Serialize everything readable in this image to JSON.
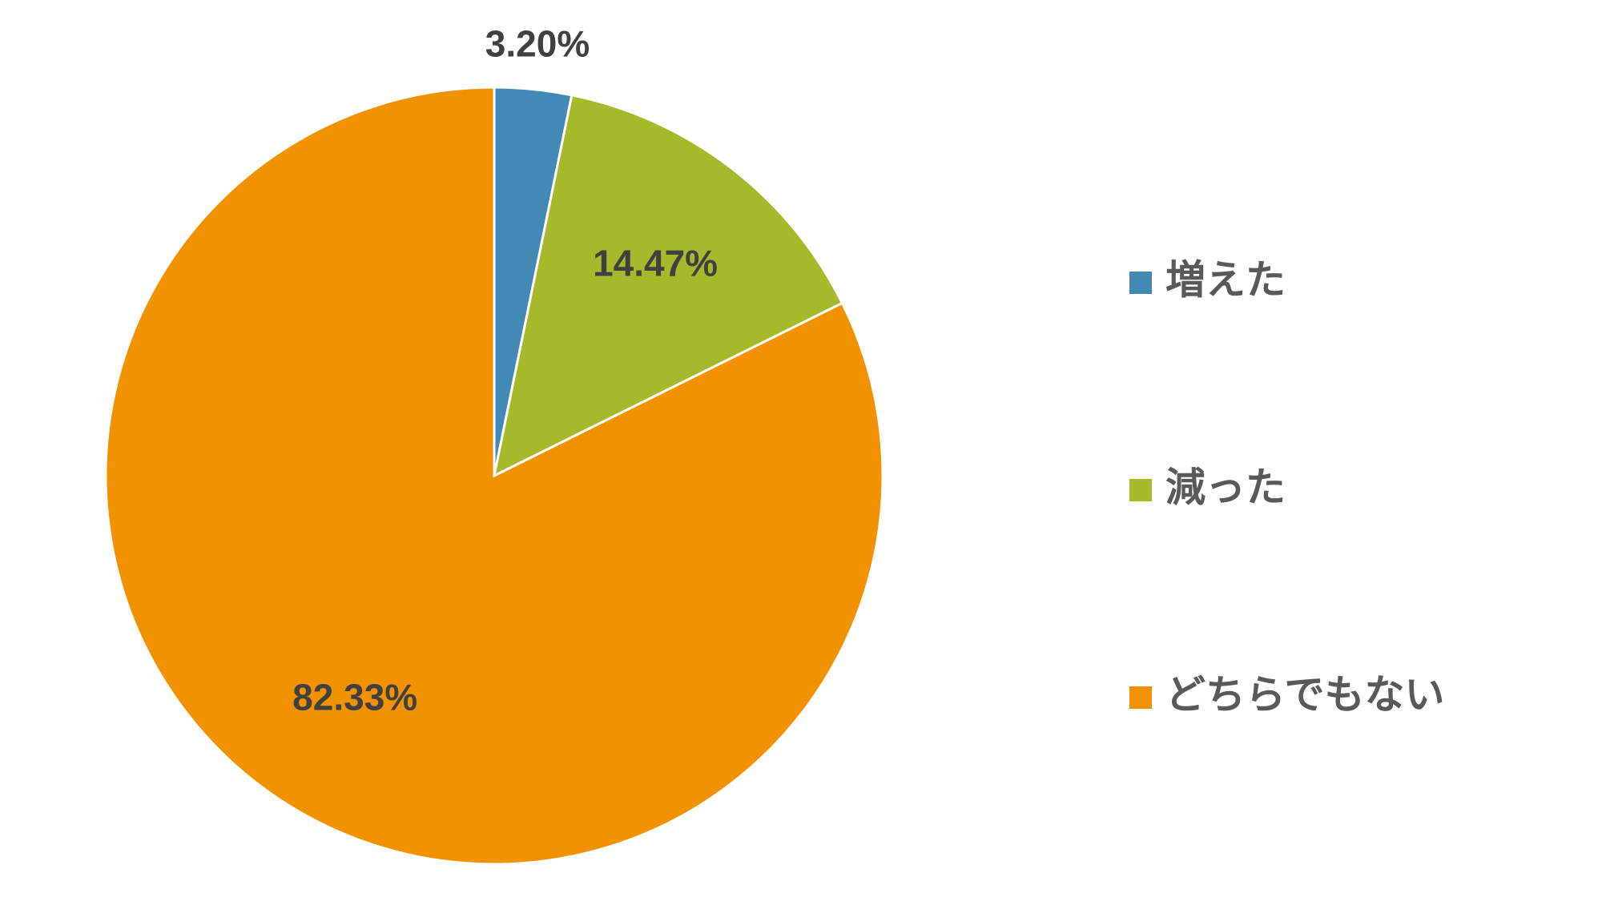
{
  "chart_data": {
    "type": "pie",
    "categories": [
      "増えた",
      "減った",
      "どちらでもない"
    ],
    "values": [
      3.2,
      14.47,
      82.33
    ],
    "value_labels": [
      "3.20%",
      "14.47%",
      "82.33%"
    ],
    "colors": [
      "#4389b5",
      "#a5b92b",
      "#f39200"
    ],
    "legend": "right"
  }
}
